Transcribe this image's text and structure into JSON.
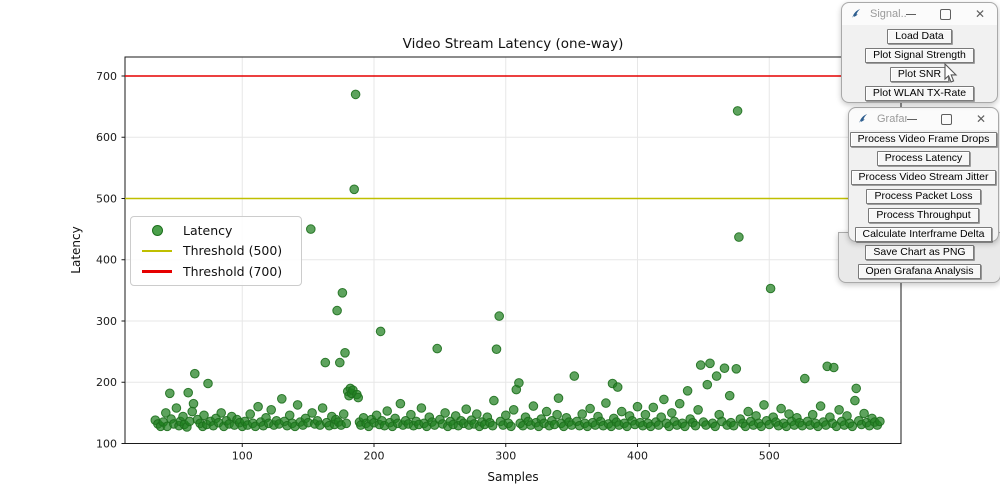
{
  "chart_data": {
    "type": "scatter",
    "title": "Video Stream Latency (one-way)",
    "xlabel": "Samples",
    "ylabel": "Latency",
    "xlim": [
      11,
      600
    ],
    "ylim": [
      100,
      731
    ],
    "xticks": [
      100,
      200,
      300,
      400,
      500
    ],
    "yticks": [
      100,
      200,
      300,
      400,
      500,
      600,
      700
    ],
    "grid": true,
    "colors": {
      "grid": "#e7e7e7",
      "spine": "#1a1a1a"
    },
    "thresholds": [
      {
        "label": "Threshold (500)",
        "value": 500,
        "color": "#bfbf00"
      },
      {
        "label": "Threshold (700)",
        "value": 700,
        "color": "#e60000"
      }
    ],
    "legend": {
      "position": "center-left",
      "items": [
        {
          "label": "Latency",
          "marker": "dot",
          "color": "#4ba04b",
          "edge": "#1d6f1d"
        },
        {
          "label": "Threshold (500)",
          "marker": "line",
          "color": "#bfbf00"
        },
        {
          "label": "Threshold (700)",
          "marker": "line",
          "color": "#e60000"
        }
      ]
    },
    "series": [
      {
        "name": "Latency",
        "fill": "#208020",
        "fill_opacity": 0.72,
        "edge": "#1d6f1d",
        "edge_opacity": 0.9,
        "marker_radius": 4.3,
        "points": [
          [
            34,
            138
          ],
          [
            36,
            132
          ],
          [
            38,
            128
          ],
          [
            40,
            135
          ],
          [
            42,
            150
          ],
          [
            43,
            128
          ],
          [
            45,
            182
          ],
          [
            46,
            140
          ],
          [
            48,
            132
          ],
          [
            50,
            158
          ],
          [
            52,
            129
          ],
          [
            53,
            136
          ],
          [
            55,
            144
          ],
          [
            56,
            131
          ],
          [
            58,
            127
          ],
          [
            59,
            183
          ],
          [
            60,
            136
          ],
          [
            62,
            152
          ],
          [
            63,
            165
          ],
          [
            64,
            214
          ],
          [
            66,
            139
          ],
          [
            68,
            133
          ],
          [
            70,
            128
          ],
          [
            71,
            146
          ],
          [
            73,
            131
          ],
          [
            74,
            198
          ],
          [
            76,
            136
          ],
          [
            78,
            129
          ],
          [
            80,
            141
          ],
          [
            82,
            134
          ],
          [
            84,
            150
          ],
          [
            86,
            128
          ],
          [
            88,
            137
          ],
          [
            90,
            132
          ],
          [
            92,
            144
          ],
          [
            94,
            130
          ],
          [
            96,
            139
          ],
          [
            98,
            134
          ],
          [
            100,
            128
          ],
          [
            102,
            136
          ],
          [
            104,
            130
          ],
          [
            106,
            148
          ],
          [
            108,
            133
          ],
          [
            110,
            128
          ],
          [
            112,
            160
          ],
          [
            114,
            135
          ],
          [
            116,
            129
          ],
          [
            118,
            142
          ],
          [
            120,
            133
          ],
          [
            122,
            155
          ],
          [
            124,
            130
          ],
          [
            126,
            137
          ],
          [
            128,
            132
          ],
          [
            130,
            173
          ],
          [
            132,
            136
          ],
          [
            134,
            129
          ],
          [
            136,
            146
          ],
          [
            138,
            133
          ],
          [
            140,
            128
          ],
          [
            142,
            163
          ],
          [
            144,
            135
          ],
          [
            146,
            130
          ],
          [
            148,
            141
          ],
          [
            150,
            134
          ],
          [
            152,
            450
          ],
          [
            153,
            150
          ],
          [
            155,
            132
          ],
          [
            157,
            137
          ],
          [
            159,
            130
          ],
          [
            161,
            158
          ],
          [
            163,
            232
          ],
          [
            164,
            134
          ],
          [
            166,
            129
          ],
          [
            168,
            144
          ],
          [
            170,
            131
          ],
          [
            171,
            139
          ],
          [
            172,
            317
          ],
          [
            173,
            135
          ],
          [
            174,
            232
          ],
          [
            175,
            130
          ],
          [
            176,
            346
          ],
          [
            177,
            148
          ],
          [
            178,
            248
          ],
          [
            179,
            133
          ],
          [
            180,
            185
          ],
          [
            181,
            178
          ],
          [
            182,
            190
          ],
          [
            183,
            182
          ],
          [
            184,
            187
          ],
          [
            185,
            515
          ],
          [
            186,
            670
          ],
          [
            187,
            180
          ],
          [
            188,
            175
          ],
          [
            189,
            135
          ],
          [
            190,
            130
          ],
          [
            192,
            142
          ],
          [
            194,
            133
          ],
          [
            196,
            128
          ],
          [
            198,
            139
          ],
          [
            200,
            134
          ],
          [
            202,
            146
          ],
          [
            204,
            131
          ],
          [
            205,
            283
          ],
          [
            206,
            137
          ],
          [
            208,
            129
          ],
          [
            210,
            153
          ],
          [
            212,
            134
          ],
          [
            214,
            128
          ],
          [
            216,
            141
          ],
          [
            218,
            133
          ],
          [
            220,
            165
          ],
          [
            222,
            130
          ],
          [
            224,
            137
          ],
          [
            226,
            132
          ],
          [
            228,
            147
          ],
          [
            230,
            129
          ],
          [
            232,
            136
          ],
          [
            234,
            131
          ],
          [
            236,
            158
          ],
          [
            238,
            133
          ],
          [
            240,
            128
          ],
          [
            242,
            143
          ],
          [
            244,
            135
          ],
          [
            246,
            130
          ],
          [
            248,
            255
          ],
          [
            250,
            139
          ],
          [
            252,
            132
          ],
          [
            254,
            150
          ],
          [
            256,
            128
          ],
          [
            258,
            136
          ],
          [
            260,
            131
          ],
          [
            262,
            145
          ],
          [
            264,
            129
          ],
          [
            266,
            137
          ],
          [
            268,
            133
          ],
          [
            270,
            156
          ],
          [
            272,
            130
          ],
          [
            274,
            138
          ],
          [
            276,
            132
          ],
          [
            278,
            148
          ],
          [
            280,
            128
          ],
          [
            282,
            135
          ],
          [
            284,
            131
          ],
          [
            286,
            143
          ],
          [
            288,
            134
          ],
          [
            290,
            129
          ],
          [
            291,
            170
          ],
          [
            293,
            254
          ],
          [
            295,
            308
          ],
          [
            296,
            136
          ],
          [
            298,
            130
          ],
          [
            300,
            146
          ],
          [
            302,
            133
          ],
          [
            304,
            128
          ],
          [
            306,
            155
          ],
          [
            308,
            188
          ],
          [
            310,
            199
          ],
          [
            311,
            133
          ],
          [
            313,
            129
          ],
          [
            315,
            143
          ],
          [
            317,
            136
          ],
          [
            319,
            130
          ],
          [
            321,
            161
          ],
          [
            323,
            134
          ],
          [
            325,
            128
          ],
          [
            327,
            140
          ],
          [
            329,
            133
          ],
          [
            331,
            152
          ],
          [
            333,
            129
          ],
          [
            335,
            137
          ],
          [
            337,
            131
          ],
          [
            339,
            147
          ],
          [
            340,
            174
          ],
          [
            342,
            133
          ],
          [
            344,
            128
          ],
          [
            346,
            142
          ],
          [
            348,
            135
          ],
          [
            350,
            130
          ],
          [
            352,
            210
          ],
          [
            354,
            136
          ],
          [
            356,
            129
          ],
          [
            358,
            148
          ],
          [
            360,
            133
          ],
          [
            362,
            128
          ],
          [
            364,
            157
          ],
          [
            366,
            134
          ],
          [
            368,
            130
          ],
          [
            370,
            144
          ],
          [
            372,
            136
          ],
          [
            374,
            129
          ],
          [
            376,
            166
          ],
          [
            378,
            132
          ],
          [
            380,
            128
          ],
          [
            381,
            198
          ],
          [
            382,
            141
          ],
          [
            384,
            135
          ],
          [
            385,
            192
          ],
          [
            386,
            130
          ],
          [
            388,
            152
          ],
          [
            390,
            133
          ],
          [
            392,
            128
          ],
          [
            394,
            145
          ],
          [
            396,
            137
          ],
          [
            398,
            131
          ],
          [
            400,
            160
          ],
          [
            402,
            134
          ],
          [
            404,
            129
          ],
          [
            406,
            147
          ],
          [
            408,
            133
          ],
          [
            410,
            128
          ],
          [
            412,
            159
          ],
          [
            414,
            135
          ],
          [
            416,
            130
          ],
          [
            418,
            143
          ],
          [
            420,
            172
          ],
          [
            422,
            133
          ],
          [
            424,
            128
          ],
          [
            426,
            150
          ],
          [
            428,
            136
          ],
          [
            430,
            130
          ],
          [
            432,
            165
          ],
          [
            434,
            133
          ],
          [
            436,
            128
          ],
          [
            438,
            186
          ],
          [
            440,
            140
          ],
          [
            442,
            134
          ],
          [
            444,
            129
          ],
          [
            446,
            155
          ],
          [
            448,
            228
          ],
          [
            450,
            135
          ],
          [
            452,
            130
          ],
          [
            453,
            196
          ],
          [
            455,
            231
          ],
          [
            457,
            133
          ],
          [
            459,
            128
          ],
          [
            460,
            210
          ],
          [
            462,
            147
          ],
          [
            464,
            136
          ],
          [
            466,
            223
          ],
          [
            468,
            130
          ],
          [
            470,
            178
          ],
          [
            471,
            134
          ],
          [
            473,
            129
          ],
          [
            475,
            222
          ],
          [
            476,
            643
          ],
          [
            477,
            437
          ],
          [
            478,
            140
          ],
          [
            480,
            133
          ],
          [
            482,
            128
          ],
          [
            484,
            152
          ],
          [
            486,
            136
          ],
          [
            488,
            130
          ],
          [
            490,
            145
          ],
          [
            492,
            133
          ],
          [
            494,
            128
          ],
          [
            496,
            163
          ],
          [
            498,
            137
          ],
          [
            500,
            131
          ],
          [
            501,
            353
          ],
          [
            503,
            143
          ],
          [
            505,
            135
          ],
          [
            507,
            129
          ],
          [
            509,
            157
          ],
          [
            511,
            133
          ],
          [
            513,
            128
          ],
          [
            515,
            148
          ],
          [
            517,
            136
          ],
          [
            519,
            130
          ],
          [
            521,
            142
          ],
          [
            523,
            134
          ],
          [
            525,
            129
          ],
          [
            527,
            206
          ],
          [
            529,
            136
          ],
          [
            531,
            130
          ],
          [
            533,
            147
          ],
          [
            535,
            133
          ],
          [
            537,
            128
          ],
          [
            539,
            161
          ],
          [
            541,
            135
          ],
          [
            543,
            130
          ],
          [
            544,
            226
          ],
          [
            546,
            143
          ],
          [
            548,
            133
          ],
          [
            549,
            224
          ],
          [
            551,
            128
          ],
          [
            553,
            155
          ],
          [
            555,
            136
          ],
          [
            557,
            130
          ],
          [
            559,
            145
          ],
          [
            561,
            133
          ],
          [
            563,
            128
          ],
          [
            565,
            170
          ],
          [
            566,
            190
          ],
          [
            568,
            137
          ],
          [
            570,
            131
          ],
          [
            572,
            149
          ],
          [
            574,
            134
          ],
          [
            576,
            129
          ],
          [
            578,
            141
          ],
          [
            580,
            135
          ],
          [
            582,
            130
          ],
          [
            584,
            136
          ]
        ]
      }
    ]
  },
  "icons": {
    "close": "✕"
  },
  "windows": [
    {
      "title": "Signal...",
      "buttons": [
        "Load Data",
        "Plot Signal Strength",
        "Plot SNR",
        "Plot WLAN TX-Rate"
      ]
    },
    {
      "title": "Grafana...",
      "buttons": [
        "Process Video Frame Drops",
        "Process Latency",
        "Process Video Stream Jitter",
        "Process Packet Loss",
        "Process Throughput",
        "Calculate Interframe Delta"
      ]
    },
    {
      "title": "",
      "buttons": [
        "Save Chart as PNG",
        "Open Grafana Analysis"
      ]
    }
  ]
}
